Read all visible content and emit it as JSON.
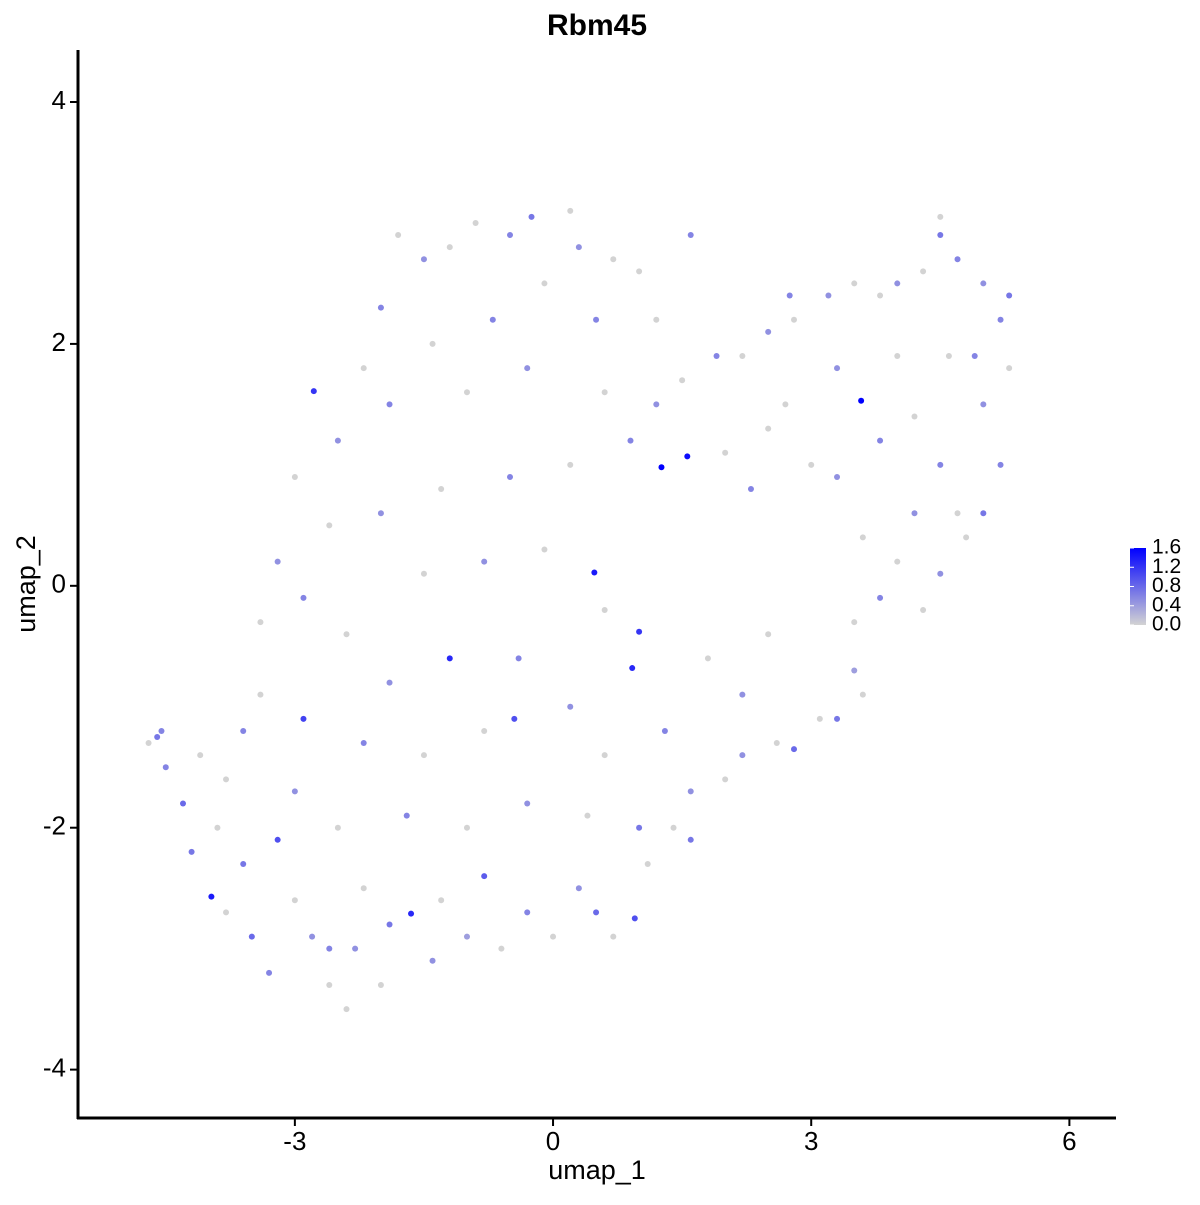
{
  "chart_data": {
    "type": "scatter",
    "title": "Rbm45",
    "x_label": "umap_1",
    "y_label": "umap_2",
    "xlim": [
      -5.52,
      6.53
    ],
    "ylim": [
      -4.4,
      4.43
    ],
    "xticks": [
      -3,
      0,
      3,
      6
    ],
    "yticks": [
      4,
      2,
      0,
      -2,
      -4
    ],
    "x": [
      -4.6,
      -4.55,
      -4.7,
      -4.5,
      -4.3,
      -4.1,
      -4.2,
      -3.97,
      -3.8,
      -3.9,
      -3.6,
      -3.5,
      -3.3,
      -3.6,
      -3.4,
      -3.2,
      -3.0,
      -2.9,
      -2.8,
      -2.6,
      -2.6,
      -2.4,
      -2.3,
      -2.2,
      -2.0,
      -1.9,
      -1.65,
      -1.4,
      -1.3,
      -1.0,
      -0.8,
      -0.6,
      -0.3,
      0,
      0.3,
      0.5,
      0.7,
      0.95,
      1.1,
      1.0,
      1.4,
      1.6,
      1.6,
      2.0,
      2.2,
      2.6,
      2.8,
      3.1,
      3.3,
      3.5,
      3.6,
      3.5,
      3.8,
      4.0,
      4.3,
      4.5,
      4.8,
      5.0,
      5.2,
      5.0,
      5.3,
      5.2,
      5.3,
      5.0,
      4.7,
      4.5,
      4.5,
      4.3,
      4.0,
      3.8,
      3.5,
      3.2,
      2.8,
      2.75,
      2.5,
      2.2,
      1.9,
      1.5,
      1.2,
      1.56,
      1.26,
      3.58,
      2.0,
      2.3,
      2.5,
      3.0,
      3.3,
      3.8,
      4.2,
      4.5,
      4.7,
      4.2,
      3.6,
      4.6,
      4.9,
      4.0,
      3.3,
      2.7,
      0.48,
      0.92,
      1.0,
      -1.2,
      -2.78,
      -3.0,
      -3.2,
      -3.4,
      -2.9,
      -2.6,
      -2.5,
      -2.2,
      -2.0,
      -1.8,
      -1.5,
      -1.2,
      -0.9,
      -0.5,
      -0.25,
      0.2,
      0.3,
      0.7,
      1.0,
      1.6,
      1.2,
      0.5,
      -0.1,
      -0.7,
      -1.4,
      -1.9,
      -1.0,
      -0.3,
      0.6,
      0.9,
      0.2,
      -0.5,
      -1.3,
      -2.0,
      -1.5,
      -0.8,
      -0.1,
      0.6,
      -0.4,
      -1.9,
      -2.4,
      -2.2,
      -1.5,
      -0.8,
      -0.45,
      0.2,
      0.6,
      1.3,
      1.8,
      2.2,
      2.5,
      -3.0,
      -2.5,
      -1.7,
      -1.0,
      -0.3,
      0.4,
      -3.8
    ],
    "y": [
      -1.25,
      -1.2,
      -1.3,
      -1.5,
      -1.8,
      -1.4,
      -2.2,
      -2.57,
      -1.6,
      -2.0,
      -2.3,
      -2.9,
      -3.2,
      -1.2,
      -0.9,
      -2.1,
      -2.6,
      -1.1,
      -2.9,
      -3.0,
      -3.3,
      -3.5,
      -3.0,
      -2.5,
      -3.3,
      -2.8,
      -2.71,
      -3.1,
      -2.6,
      -2.9,
      -2.4,
      -3.0,
      -2.7,
      -2.9,
      -2.5,
      -2.7,
      -2.9,
      -2.75,
      -2.3,
      -2.0,
      -2.0,
      -1.7,
      -2.1,
      -1.6,
      -1.4,
      -1.3,
      -1.35,
      -1.1,
      -1.1,
      -0.7,
      -0.9,
      -0.3,
      -0.1,
      0.2,
      -0.2,
      0.1,
      0.4,
      0.6,
      1.0,
      1.5,
      1.8,
      2.2,
      2.4,
      2.5,
      2.7,
      2.9,
      3.05,
      2.6,
      2.5,
      2.4,
      2.5,
      2.4,
      2.2,
      2.4,
      2.1,
      1.9,
      1.9,
      1.7,
      1.5,
      1.07,
      0.98,
      1.53,
      1.1,
      0.8,
      1.3,
      1.0,
      0.9,
      1.2,
      1.4,
      1.0,
      0.6,
      0.6,
      0.4,
      1.9,
      1.9,
      1.9,
      1.8,
      1.5,
      0.11,
      -0.68,
      -0.38,
      -0.6,
      1.61,
      0.9,
      0.2,
      -0.3,
      -0.1,
      0.5,
      1.2,
      1.8,
      2.3,
      2.9,
      2.7,
      2.8,
      3.0,
      2.9,
      3.05,
      3.1,
      2.8,
      2.7,
      2.6,
      2.9,
      2.2,
      2.2,
      2.5,
      2.2,
      2.0,
      1.5,
      1.6,
      1.8,
      1.6,
      1.2,
      1.0,
      0.9,
      0.8,
      0.6,
      0.1,
      0.2,
      0.3,
      -0.2,
      -0.6,
      -0.8,
      -0.4,
      -1.3,
      -1.4,
      -1.2,
      -1.1,
      -1.0,
      -1.4,
      -1.2,
      -0.6,
      -0.9,
      -0.4,
      -1.7,
      -2.0,
      -1.9,
      -2.0,
      -1.8,
      -1.9,
      -2.7
    ],
    "values": [
      0.7,
      0.6,
      0,
      0.6,
      0.8,
      0,
      0.7,
      1.4,
      0,
      0,
      0.7,
      0.8,
      0.6,
      0.6,
      0,
      1.0,
      0,
      1.1,
      0.5,
      0.6,
      0,
      0,
      0.5,
      0,
      0,
      0.7,
      1.3,
      0.5,
      0,
      0.4,
      0.9,
      0,
      0.6,
      0,
      0.5,
      0.8,
      0,
      1.0,
      0,
      0.7,
      0,
      0.5,
      0.7,
      0,
      0.5,
      0,
      0.8,
      0,
      0.7,
      0.4,
      0,
      0,
      0.6,
      0,
      0,
      0.5,
      0,
      0.7,
      0.6,
      0.5,
      0,
      0.6,
      0.7,
      0.5,
      0.6,
      0.7,
      0,
      0,
      0.5,
      0,
      0,
      0.5,
      0,
      0.6,
      0.5,
      0,
      0.6,
      0,
      0.5,
      1.5,
      1.6,
      1.6,
      0,
      0.6,
      0,
      0,
      0.5,
      0.6,
      0,
      0.6,
      0,
      0.5,
      0,
      0,
      0.6,
      0,
      0.5,
      0,
      1.4,
      1.3,
      1.2,
      1.3,
      1.2,
      0,
      0.5,
      0,
      0.6,
      0,
      0.5,
      0,
      0.6,
      0,
      0.5,
      0,
      0,
      0.6,
      0.7,
      0,
      0.5,
      0,
      0,
      0.6,
      0,
      0.6,
      0,
      0.6,
      0,
      0.6,
      0,
      0.5,
      0,
      0.6,
      0,
      0.6,
      0,
      0.5,
      0,
      0.5,
      0,
      0,
      0.6,
      0.5,
      0,
      0.6,
      0,
      0,
      1.0,
      0.5,
      0,
      0.6,
      0,
      0.5,
      0,
      0.5,
      0,
      0.6,
      0,
      0.5,
      0,
      0
    ],
    "colorbar": {
      "lim": [
        0,
        1.6
      ],
      "low": "#d3d3d3",
      "high": "#0000ff",
      "ticks": [
        {
          "value": 0,
          "label": "0.0"
        },
        0.4,
        0.8,
        1.2,
        1.6
      ]
    }
  }
}
